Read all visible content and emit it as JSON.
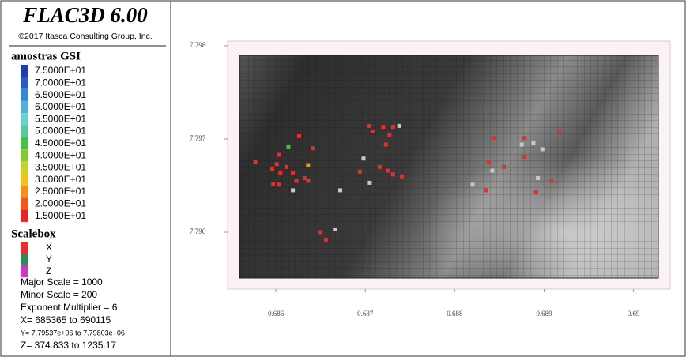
{
  "header": {
    "title": "FLAC3D 6.00",
    "copyright": "©2017 Itasca Consulting Group, Inc."
  },
  "legend": {
    "title": "amostras GSI",
    "entries": [
      {
        "label": "7.5000E+01",
        "color": "#1f3fa8"
      },
      {
        "label": "7.0000E+01",
        "color": "#2a5cc0"
      },
      {
        "label": "6.5000E+01",
        "color": "#3a86d0"
      },
      {
        "label": "6.0000E+01",
        "color": "#55b0d8"
      },
      {
        "label": "5.5000E+01",
        "color": "#6fd0c8"
      },
      {
        "label": "5.0000E+01",
        "color": "#5cc89a"
      },
      {
        "label": "4.5000E+01",
        "color": "#4cbc4c"
      },
      {
        "label": "4.0000E+01",
        "color": "#86c83a"
      },
      {
        "label": "3.5000E+01",
        "color": "#c8d030"
      },
      {
        "label": "3.0000E+01",
        "color": "#f0c020"
      },
      {
        "label": "2.5000E+01",
        "color": "#f09020"
      },
      {
        "label": "2.0000E+01",
        "color": "#ec5a20"
      },
      {
        "label": "1.5000E+01",
        "color": "#e02828"
      }
    ]
  },
  "scalebox": {
    "title": "Scalebox",
    "axes": [
      {
        "label": "X",
        "color": "#e03030"
      },
      {
        "label": "Y",
        "color": "#2e8b57"
      },
      {
        "label": "Z",
        "color": "#c040c0"
      }
    ],
    "lines": [
      "Major Scale = 1000",
      "Minor Scale = 200",
      "Exponent Multiplier = 6",
      "X= 685365 to 690115",
      "Y= 7.79537e+06 to 7.79803e+06",
      "Z= 374.833 to 1235.17"
    ]
  },
  "plot": {
    "xlim": [
      0.68546,
      0.69041
    ],
    "ylim": [
      7.79539,
      7.79805
    ],
    "xticks": [
      0.686,
      0.687,
      0.688,
      0.689,
      0.69
    ],
    "yticks": [
      7.798,
      7.797,
      7.796
    ],
    "points": [
      {
        "x": 0.68603,
        "y": 7.79683,
        "color": "#e03030"
      },
      {
        "x": 0.68601,
        "y": 7.79673,
        "color": "#e03030"
      },
      {
        "x": 0.68596,
        "y": 7.79668,
        "color": "#e03030"
      },
      {
        "x": 0.68605,
        "y": 7.79664,
        "color": "#e03030"
      },
      {
        "x": 0.68597,
        "y": 7.79652,
        "color": "#e03030"
      },
      {
        "x": 0.68603,
        "y": 7.79651,
        "color": "#e03030"
      },
      {
        "x": 0.68612,
        "y": 7.7967,
        "color": "#e03030"
      },
      {
        "x": 0.68619,
        "y": 7.79664,
        "color": "#e03030"
      },
      {
        "x": 0.68623,
        "y": 7.79655,
        "color": "#e03030"
      },
      {
        "x": 0.68632,
        "y": 7.79658,
        "color": "#e03030"
      },
      {
        "x": 0.68636,
        "y": 7.79655,
        "color": "#e03030"
      },
      {
        "x": 0.68626,
        "y": 7.79703,
        "color": "#e03030"
      },
      {
        "x": 0.68641,
        "y": 7.7969,
        "color": "#e03030"
      },
      {
        "x": 0.68636,
        "y": 7.79672,
        "color": "#f09020"
      },
      {
        "x": 0.6865,
        "y": 7.796,
        "color": "#e03030"
      },
      {
        "x": 0.68656,
        "y": 7.79592,
        "color": "#e03030"
      },
      {
        "x": 0.68666,
        "y": 7.79603,
        "color": "#c8c8c8"
      },
      {
        "x": 0.68672,
        "y": 7.79645,
        "color": "#c8c8c8"
      },
      {
        "x": 0.68694,
        "y": 7.79665,
        "color": "#e03030"
      },
      {
        "x": 0.68704,
        "y": 7.79714,
        "color": "#e03030"
      },
      {
        "x": 0.68708,
        "y": 7.79708,
        "color": "#e03030"
      },
      {
        "x": 0.6872,
        "y": 7.79713,
        "color": "#e03030"
      },
      {
        "x": 0.68727,
        "y": 7.79704,
        "color": "#e03030"
      },
      {
        "x": 0.68723,
        "y": 7.79694,
        "color": "#e03030"
      },
      {
        "x": 0.68731,
        "y": 7.79713,
        "color": "#e03030"
      },
      {
        "x": 0.68738,
        "y": 7.79714,
        "color": "#c8c8c8"
      },
      {
        "x": 0.68725,
        "y": 7.79666,
        "color": "#e03030"
      },
      {
        "x": 0.68731,
        "y": 7.79662,
        "color": "#e03030"
      },
      {
        "x": 0.68741,
        "y": 7.7966,
        "color": "#e03030"
      },
      {
        "x": 0.68716,
        "y": 7.7967,
        "color": "#e03030"
      },
      {
        "x": 0.68705,
        "y": 7.79653,
        "color": "#c8c8c8"
      },
      {
        "x": 0.68698,
        "y": 7.79679,
        "color": "#c8c8c8"
      },
      {
        "x": 0.68844,
        "y": 7.79701,
        "color": "#e03030"
      },
      {
        "x": 0.68838,
        "y": 7.79675,
        "color": "#e03030"
      },
      {
        "x": 0.68842,
        "y": 7.79666,
        "color": "#c8c8c8"
      },
      {
        "x": 0.68855,
        "y": 7.7967,
        "color": "#e03030"
      },
      {
        "x": 0.68835,
        "y": 7.79645,
        "color": "#e03030"
      },
      {
        "x": 0.68875,
        "y": 7.79694,
        "color": "#c8c8c8"
      },
      {
        "x": 0.68878,
        "y": 7.79681,
        "color": "#e03030"
      },
      {
        "x": 0.68888,
        "y": 7.79696,
        "color": "#c8c8c8"
      },
      {
        "x": 0.68898,
        "y": 7.79689,
        "color": "#c8c8c8"
      },
      {
        "x": 0.68893,
        "y": 7.79658,
        "color": "#c8c8c8"
      },
      {
        "x": 0.68891,
        "y": 7.79643,
        "color": "#e03030"
      },
      {
        "x": 0.68908,
        "y": 7.79655,
        "color": "#e03030"
      },
      {
        "x": 0.68917,
        "y": 7.79708,
        "color": "#e03030"
      },
      {
        "x": 0.68878,
        "y": 7.79701,
        "color": "#e03030"
      },
      {
        "x": 0.68577,
        "y": 7.79675,
        "color": "#e03030"
      },
      {
        "x": 0.68619,
        "y": 7.79645,
        "color": "#c8c8c8"
      },
      {
        "x": 0.6882,
        "y": 7.79651,
        "color": "#c8c8c8"
      },
      {
        "x": 0.68614,
        "y": 7.79692,
        "color": "#4cbc4c"
      }
    ]
  }
}
